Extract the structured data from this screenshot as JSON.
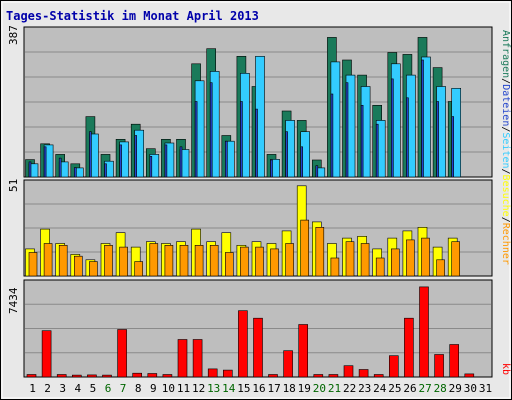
{
  "chart_data": {
    "type": "bar",
    "title": "Tages-Statistik im Monat April 2013",
    "categories": [
      "1",
      "2",
      "3",
      "4",
      "5",
      "6",
      "7",
      "8",
      "9",
      "10",
      "11",
      "12",
      "13",
      "14",
      "15",
      "16",
      "17",
      "18",
      "19",
      "20",
      "21",
      "22",
      "23",
      "24",
      "25",
      "26",
      "27",
      "28",
      "29",
      "30",
      "31"
    ],
    "weekend_categories": [
      "6",
      "7",
      "13",
      "14",
      "20",
      "21",
      "27",
      "28"
    ],
    "weekend_color": "#006600",
    "weekday_color": "#000000",
    "panels": [
      {
        "id": "requests",
        "ymax_label": "387",
        "ylim": [
          0,
          387
        ],
        "series": [
          {
            "name": "Anfragen",
            "color": "#1a7a5a",
            "values": [
              46,
              88,
              60,
              35,
              160,
              60,
              100,
              140,
              75,
              100,
              100,
              300,
              340,
              110,
              320,
              240,
              60,
              175,
              150,
              45,
              370,
              310,
              270,
              190,
              330,
              325,
              370,
              290,
              200,
              0,
              0
            ]
          },
          {
            "name": "Dateien",
            "color": "#2244cc",
            "values": [
              40,
              80,
              50,
              25,
              120,
              35,
              85,
              110,
              55,
              85,
              80,
              200,
              250,
              95,
              200,
              180,
              45,
              120,
              80,
              30,
              220,
              250,
              190,
              140,
              260,
              210,
              310,
              200,
              160,
              0,
              0
            ]
          },
          {
            "name": "Seiten",
            "color": "#33ccff",
            "values": [
              35,
              85,
              40,
              24,
              114,
              42,
              93,
              124,
              60,
              90,
              73,
              255,
              280,
              95,
              275,
              320,
              47,
              150,
              120,
              24,
              305,
              270,
              240,
              150,
              300,
              270,
              318,
              240,
              235,
              0,
              0
            ]
          }
        ]
      },
      {
        "id": "visits",
        "ymax_label": "51",
        "ylim": [
          0,
          51
        ],
        "series": [
          {
            "name": "Besuche",
            "color": "#ffff00",
            "values": [
              15,
              26,
              18,
              12,
              9,
              18,
              24,
              16,
              19,
              18,
              19,
              26,
              19,
              24,
              17,
              19,
              18,
              25,
              50,
              30,
              18,
              21,
              22,
              15,
              21,
              25,
              27,
              16,
              21,
              0,
              0
            ]
          },
          {
            "name": "Rechner",
            "color": "#ff9900",
            "values": [
              13,
              18,
              17,
              11,
              8,
              17,
              16,
              8,
              18,
              17,
              17,
              17,
              17,
              13,
              16,
              16,
              15,
              18,
              31,
              27,
              10,
              19,
              18,
              10,
              15,
              20,
              21,
              9,
              19,
              0,
              0
            ]
          }
        ]
      },
      {
        "id": "kb",
        "ymax_label": "7434",
        "ylim": [
          0,
          7434
        ],
        "series": [
          {
            "name": "kb",
            "color": "#ff0000",
            "values": [
              200,
              3700,
              200,
              150,
              170,
              150,
              3800,
              300,
              280,
              200,
              3000,
              3000,
              650,
              550,
              5300,
              4700,
              200,
              2100,
              4200,
              200,
              200,
              900,
              600,
              200,
              1700,
              4700,
              7200,
              1800,
              2600,
              250,
              0
            ]
          }
        ]
      }
    ],
    "right_labels": [
      {
        "text": "Anfragen",
        "color": "#1a7a5a"
      },
      {
        "text": "/",
        "color": "#000000"
      },
      {
        "text": "Dateien",
        "color": "#2244cc"
      },
      {
        "text": "/",
        "color": "#000000"
      },
      {
        "text": "Seiten",
        "color": "#33ccff"
      },
      {
        "text": "/",
        "color": "#000000"
      },
      {
        "text": "Besuche",
        "color": "#ffff00"
      },
      {
        "text": "/",
        "color": "#000000"
      },
      {
        "text": "Rechner",
        "color": "#ff9900"
      },
      {
        "text": "kb",
        "color": "#ff0000"
      }
    ]
  }
}
